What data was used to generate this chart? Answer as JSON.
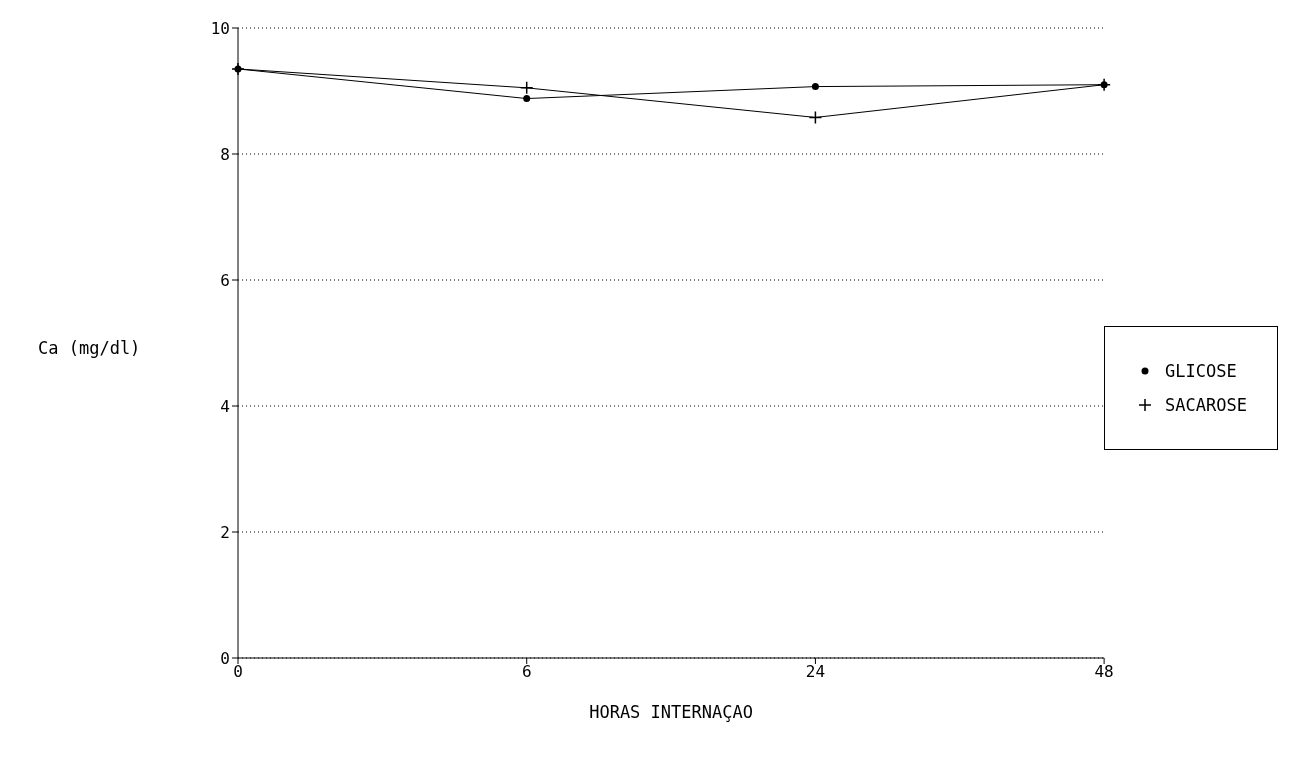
{
  "chart_data": {
    "type": "line",
    "xlabel": "HORAS  INTERNAÇAO",
    "ylabel": "Ca (mg/dl)",
    "categories": [
      "0",
      "6",
      "24",
      "48"
    ],
    "series": [
      {
        "name": "GLICOSE",
        "color": "#000000",
        "marker": "circle",
        "values": [
          9.35,
          8.88,
          9.07,
          9.1
        ]
      },
      {
        "name": "SACAROSE",
        "color": "#000000",
        "marker": "cross",
        "values": [
          9.35,
          9.05,
          8.58,
          9.1
        ]
      }
    ],
    "ylim": [
      0,
      10
    ],
    "yticks": [
      0,
      2,
      4,
      6,
      8,
      10
    ],
    "grid": "y",
    "legend": "right",
    "line_style": "solid"
  }
}
